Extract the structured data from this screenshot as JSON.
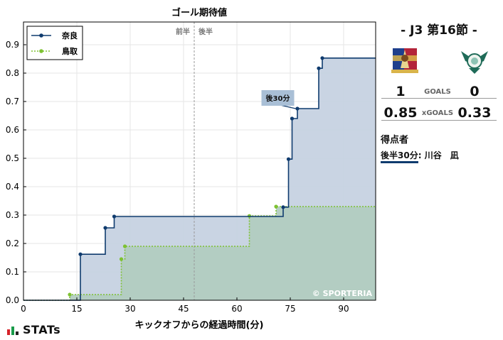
{
  "chart_data": {
    "type": "line",
    "step": true,
    "title": "ゴール期待値",
    "xlabel": "キックオフからの経過時間(分)",
    "ylabel": "",
    "xlim": [
      0,
      99
    ],
    "ylim": [
      0,
      0.98
    ],
    "xticks": [
      0,
      15,
      30,
      45,
      60,
      75,
      90
    ],
    "yticks": [
      0.0,
      0.1,
      0.2,
      0.3,
      0.4,
      0.5,
      0.6,
      0.7,
      0.8,
      0.9
    ],
    "grid": true,
    "legend_position": "top-left",
    "halftime_marker": {
      "x": 48,
      "left_label": "前半",
      "right_label": "後半"
    },
    "series": [
      {
        "name": "奈良",
        "color": "#0f3b6e",
        "fill": "#c6d2e2",
        "line_style": "solid",
        "points": [
          [
            16,
            0.162
          ],
          [
            23,
            0.255
          ],
          [
            25.5,
            0.295
          ],
          [
            73,
            0.328
          ],
          [
            74.5,
            0.497
          ],
          [
            75.5,
            0.64
          ],
          [
            77,
            0.675
          ],
          [
            83,
            0.817
          ],
          [
            84,
            0.853
          ]
        ]
      },
      {
        "name": "鳥取",
        "color": "#7ec232",
        "fill": "#b2ccc0",
        "line_style": "dotted",
        "points": [
          [
            13,
            0.02
          ],
          [
            27.5,
            0.145
          ],
          [
            28.5,
            0.19
          ],
          [
            63.5,
            0.297
          ],
          [
            71,
            0.33
          ]
        ]
      }
    ],
    "annotation": {
      "text": "後30分",
      "x": 76.5,
      "y": 0.675
    },
    "watermark": "© SPORTERIA"
  },
  "match": {
    "title": "- J3 第16節 -",
    "home_goals": "1",
    "away_goals": "0",
    "goals_label": "GOALS",
    "home_xg": "0.85",
    "away_xg": "0.33",
    "xg_label": "xGOALS",
    "scorers_heading": "得点者",
    "scorers": [
      {
        "time": "後半30分",
        "sep": ":",
        "name": "川谷　凪"
      }
    ]
  },
  "branding": {
    "logo_text": "STATs"
  }
}
